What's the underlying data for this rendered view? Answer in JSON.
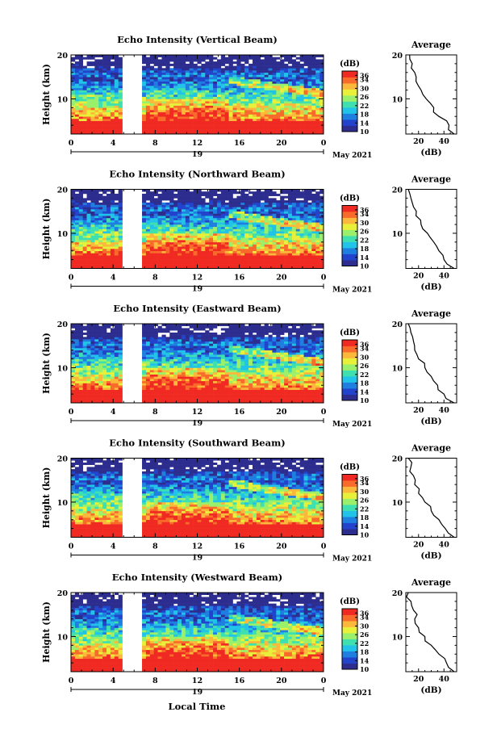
{
  "figure": {
    "bottom_xlabel": "Local Time",
    "date_label": "May 2021",
    "day_marker": "19"
  },
  "colorbar": {
    "unit": "(dB)",
    "ticks": [
      "36",
      "34",
      "30",
      "26",
      "22",
      "18",
      "14",
      "10"
    ],
    "colors": [
      "#2c2d8e",
      "#2244cc",
      "#1f7fe0",
      "#21c3e8",
      "#3fe0b0",
      "#9af06a",
      "#e8f03a",
      "#fbb83a",
      "#f86b2a",
      "#f02a22"
    ]
  },
  "chart_data": [
    {
      "type": "heatmap",
      "title": "Echo Intensity (Vertical Beam)",
      "ylabel": "Height (km)",
      "xlim": [
        0,
        24
      ],
      "ylim": [
        2,
        20
      ],
      "x_ticks": [
        "0",
        "4",
        "8",
        "12",
        "16",
        "20",
        "0"
      ],
      "y_ticks": [
        "10",
        "20"
      ],
      "clim": [
        10,
        38
      ],
      "gap_hours": [
        5.0,
        6.7
      ],
      "profile": {
        "title": "Average",
        "xlabel": "(dB)",
        "x_ticks": [
          "20",
          "40"
        ],
        "xlim": [
          10,
          50
        ],
        "height_km": [
          2,
          4,
          6,
          8,
          10,
          12,
          14,
          16,
          18,
          20
        ],
        "db": [
          48,
          44,
          36,
          32,
          26,
          22,
          18,
          17,
          15,
          13
        ]
      }
    },
    {
      "type": "heatmap",
      "title": "Echo Intensity (Northward Beam)",
      "ylabel": "Height (km)",
      "xlim": [
        0,
        24
      ],
      "ylim": [
        2,
        20
      ],
      "x_ticks": [
        "0",
        "4",
        "8",
        "12",
        "16",
        "20",
        "0"
      ],
      "y_ticks": [
        "10",
        "20"
      ],
      "clim": [
        10,
        38
      ],
      "gap_hours": [
        5.0,
        6.7
      ],
      "profile": {
        "title": "Average",
        "xlabel": "(dB)",
        "x_ticks": [
          "20",
          "40"
        ],
        "xlim": [
          10,
          50
        ],
        "height_km": [
          2,
          4,
          6,
          8,
          10,
          12,
          14,
          16,
          18,
          20
        ],
        "db": [
          48,
          40,
          36,
          32,
          27,
          22,
          18,
          16,
          14,
          12
        ]
      }
    },
    {
      "type": "heatmap",
      "title": "Echo Intensity (Eastward Beam)",
      "ylabel": "Height (km)",
      "xlim": [
        0,
        24
      ],
      "ylim": [
        2,
        20
      ],
      "x_ticks": [
        "0",
        "4",
        "8",
        "12",
        "16",
        "20",
        "0"
      ],
      "y_ticks": [
        "10",
        "20"
      ],
      "clim": [
        10,
        38
      ],
      "gap_hours": [
        5.0,
        6.7
      ],
      "profile": {
        "title": "Average",
        "xlabel": "(dB)",
        "x_ticks": [
          "20",
          "40"
        ],
        "xlim": [
          10,
          50
        ],
        "height_km": [
          2,
          4,
          6,
          8,
          10,
          12,
          14,
          16,
          18,
          20
        ],
        "db": [
          48,
          40,
          35,
          30,
          25,
          20,
          17,
          16,
          14,
          12
        ]
      }
    },
    {
      "type": "heatmap",
      "title": "Echo Intensity (Southward Beam)",
      "ylabel": "Height (km)",
      "xlim": [
        0,
        24
      ],
      "ylim": [
        2,
        20
      ],
      "x_ticks": [
        "0",
        "4",
        "8",
        "12",
        "16",
        "20",
        "0"
      ],
      "y_ticks": [
        "10",
        "20"
      ],
      "clim": [
        10,
        38
      ],
      "gap_hours": [
        5.0,
        6.7
      ],
      "profile": {
        "title": "Average",
        "xlabel": "(dB)",
        "x_ticks": [
          "20",
          "40"
        ],
        "xlim": [
          10,
          50
        ],
        "height_km": [
          2,
          4,
          6,
          8,
          10,
          12,
          14,
          16,
          18,
          20
        ],
        "db": [
          48,
          41,
          36,
          30,
          25,
          20,
          17,
          16,
          14,
          12
        ]
      }
    },
    {
      "type": "heatmap",
      "title": "Echo Intensity (Westward Beam)",
      "ylabel": "Height (km)",
      "xlim": [
        0,
        24
      ],
      "ylim": [
        2,
        20
      ],
      "x_ticks": [
        "0",
        "4",
        "8",
        "12",
        "16",
        "20",
        "0"
      ],
      "y_ticks": [
        "10",
        "20"
      ],
      "clim": [
        10,
        38
      ],
      "gap_hours": [
        5.0,
        6.7
      ],
      "profile": {
        "title": "Average",
        "xlabel": "(dB)",
        "x_ticks": [
          "20",
          "40"
        ],
        "xlim": [
          10,
          50
        ],
        "height_km": [
          2,
          4,
          6,
          8,
          10,
          12,
          14,
          16,
          18,
          20
        ],
        "db": [
          48,
          42,
          36,
          30,
          25,
          20,
          17,
          16,
          14,
          12
        ]
      }
    }
  ]
}
